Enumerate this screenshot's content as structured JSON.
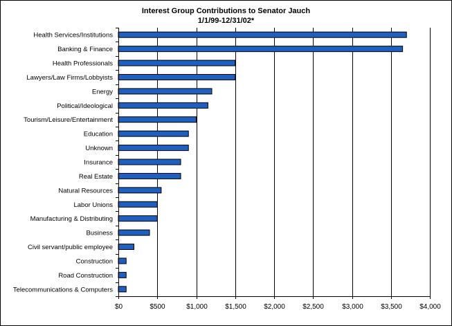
{
  "chart_data": {
    "type": "bar",
    "orientation": "horizontal",
    "title": "Interest Group Contributions to Senator Jauch",
    "subtitle": "1/1/99-12/31/02*",
    "xlabel": "",
    "ylabel": "",
    "xlim": [
      0,
      4000
    ],
    "x_tick_values": [
      0,
      500,
      1000,
      1500,
      2000,
      2500,
      3000,
      3500,
      4000
    ],
    "x_tick_labels": [
      "$0",
      "$500",
      "$1,000",
      "$1,500",
      "$2,000",
      "$2,500",
      "$3,000",
      "$3,500",
      "$4,000"
    ],
    "grid": "vertical major gridlines",
    "legend": "none",
    "bar_color": "#1f5fbf",
    "categories": [
      "Health Services/Institutions",
      "Banking & Finance",
      "Health Professionals",
      "Lawyers/Law Firms/Lobbyists",
      "Energy",
      "Political/Ideological",
      "Tourism/Leisure/Entertainment",
      "Education",
      "Unknown",
      "Insurance",
      "Real Estate",
      "Natural Resources",
      "Labor Unions",
      "Manufacturing & Distributing",
      "Business",
      "Civil servant/public employee",
      "Construction",
      "Road Construction",
      "Telecommunications & Computers"
    ],
    "values": [
      3700,
      3650,
      1500,
      1500,
      1200,
      1150,
      1000,
      900,
      900,
      800,
      800,
      550,
      500,
      500,
      400,
      200,
      100,
      100,
      100
    ]
  }
}
